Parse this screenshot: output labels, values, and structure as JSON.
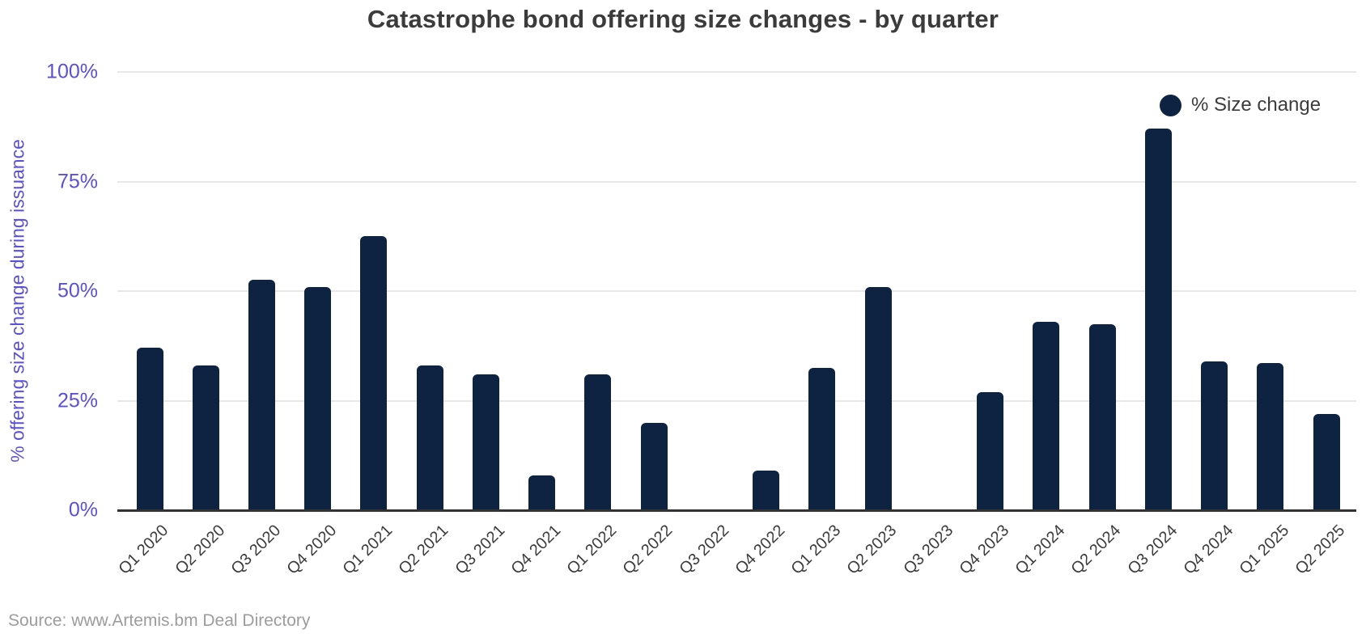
{
  "title": "Catastrophe bond offering size changes - by quarter",
  "legend": {
    "label": "% Size change",
    "marker_color": "#0e2342"
  },
  "source": "Source: www.Artemis.bm Deal Directory",
  "colors": {
    "bar": "#0e2342",
    "axis_text": "#5a50d7",
    "title_text": "#3b3b3b",
    "tick_text": "#3c3c3c",
    "gridline": "#e8e8e8",
    "axis_line": "#323232",
    "source_text": "#9c9c9c"
  },
  "chart_data": {
    "type": "bar",
    "title": "Catastrophe bond offering size changes - by quarter",
    "xlabel": "",
    "ylabel": "% offering size change during issuance",
    "categories": [
      "Q1 2020",
      "Q2 2020",
      "Q3 2020",
      "Q4 2020",
      "Q1 2021",
      "Q2 2021",
      "Q3 2021",
      "Q4 2021",
      "Q1 2022",
      "Q2 2022",
      "Q3 2022",
      "Q4 2022",
      "Q1 2023",
      "Q2 2023",
      "Q3 2023",
      "Q4 2023",
      "Q1 2024",
      "Q2 2024",
      "Q3 2024",
      "Q4 2024",
      "Q1 2025",
      "Q2 2025"
    ],
    "series": [
      {
        "name": "% Size change",
        "values": [
          37,
          33,
          52.5,
          51,
          62.5,
          33,
          31,
          8,
          31,
          20,
          0,
          9,
          32.5,
          51,
          0,
          27,
          43,
          42.5,
          87,
          34,
          33.5,
          22
        ]
      }
    ],
    "ylim": [
      0,
      100
    ],
    "yticks": [
      0,
      25,
      50,
      75,
      100
    ],
    "ytick_labels": [
      "0%",
      "25%",
      "50%",
      "75%",
      "100%"
    ],
    "grid": "horizontal",
    "legend_position": "top-right",
    "bar_color": "#0e2342"
  }
}
